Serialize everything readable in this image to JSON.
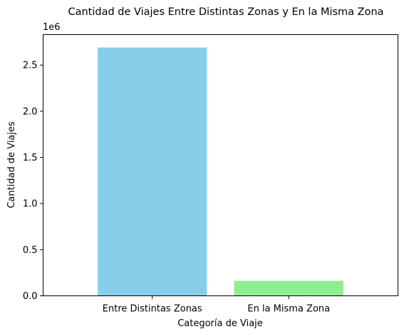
{
  "chart_data": {
    "type": "bar",
    "title": "Cantidad de Viajes Entre Distintas Zonas y En la Misma Zona",
    "xlabel": "Categoría de Viaje",
    "ylabel": "Cantidad de Viajes",
    "offset_label": "1e6",
    "categories": [
      "Entre Distintas Zonas",
      "En la Misma Zona"
    ],
    "values": [
      2690000,
      162000
    ],
    "colors": [
      "#87CEEB",
      "#90EE90"
    ],
    "ylim": [
      0,
      2830000
    ],
    "yticks": [
      0,
      500000,
      1000000,
      1500000,
      2000000,
      2500000
    ],
    "ytick_labels": [
      "0.0",
      "0.5",
      "1.0",
      "1.5",
      "2.0",
      "2.5"
    ],
    "grid": false,
    "legend": "none"
  }
}
